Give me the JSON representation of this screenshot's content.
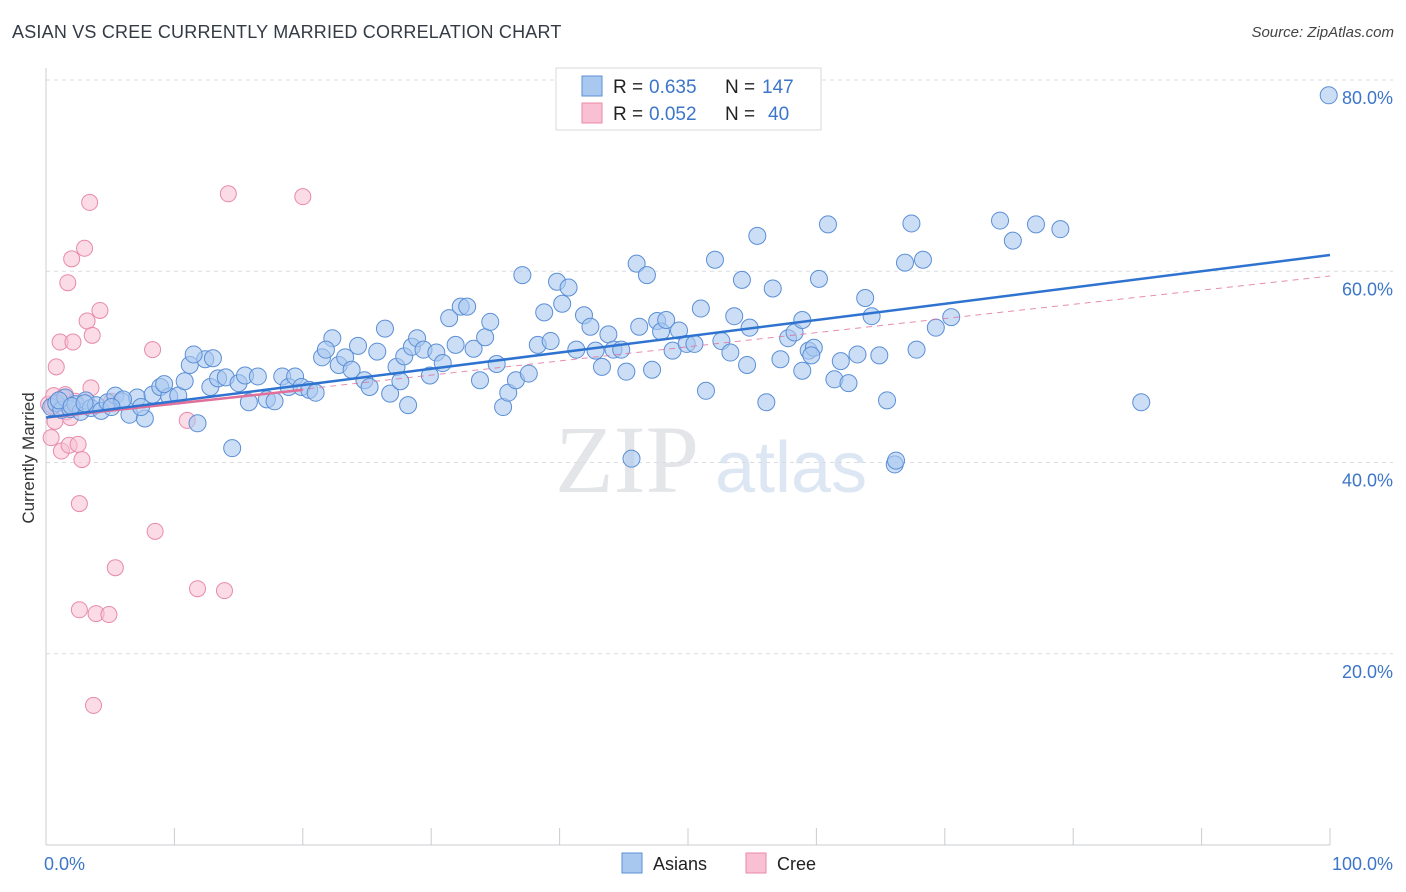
{
  "title": "ASIAN VS CREE CURRENTLY MARRIED CORRELATION CHART",
  "source": "Source: ZipAtlas.com",
  "watermark": {
    "zip": "ZIP",
    "atlas": "atlas"
  },
  "colors": {
    "asian_fill": "#a9c8f0",
    "asian_stroke": "#5b8fd6",
    "asian_line": "#2f73d0",
    "cree_fill": "#f8c0d2",
    "cree_stroke": "#e88aa8",
    "cree_line": "#e0709a",
    "tick_label": "#3c76c8",
    "grid": "#d9dde3"
  },
  "legend_top": [
    {
      "r_label": "R = ",
      "r_value": "0.635",
      "n_label": "N = ",
      "n_value": "147"
    },
    {
      "r_label": "R = ",
      "r_value": "0.052",
      "n_label": "N = ",
      "n_value": "40"
    }
  ],
  "chart_data": {
    "type": "scatter",
    "title": "ASIAN VS CREE CURRENTLY MARRIED CORRELATION CHART",
    "xlabel": "",
    "ylabel": "Currently Married",
    "xlim": [
      0,
      100
    ],
    "ylim": [
      0,
      80
    ],
    "x_tick_labels": [
      "0.0%",
      "100.0%"
    ],
    "y_ticks": [
      20,
      40,
      60,
      80
    ],
    "y_tick_labels": [
      "20.0%",
      "40.0%",
      "60.0%",
      "80.0%"
    ],
    "grid": "horizontal dashed",
    "legend_position": "bottom-center",
    "series": [
      {
        "name": "Asians",
        "r": 0.635,
        "n": 147,
        "trend": {
          "x": [
            0,
            100
          ],
          "y": [
            44.7,
            61.7
          ]
        },
        "points": [
          [
            0.4,
            45.8
          ],
          [
            0.8,
            46.2
          ],
          [
            1.2,
            45.5
          ],
          [
            1.5,
            46.8
          ],
          [
            1.9,
            45.6
          ],
          [
            2.3,
            46.1
          ],
          [
            2.7,
            45.3
          ],
          [
            3.1,
            46.5
          ],
          [
            3.5,
            45.7
          ],
          [
            3.9,
            46.0
          ],
          [
            4.3,
            45.4
          ],
          [
            4.8,
            46.3
          ],
          [
            5.4,
            47.0
          ],
          [
            5.9,
            46.4
          ],
          [
            6.5,
            45.0
          ],
          [
            7.1,
            46.8
          ],
          [
            7.7,
            44.6
          ],
          [
            8.3,
            47.1
          ],
          [
            8.9,
            47.9
          ],
          [
            9.6,
            46.9
          ],
          [
            10.3,
            47.0
          ],
          [
            10.8,
            48.5
          ],
          [
            11.2,
            50.2
          ],
          [
            11.8,
            44.1
          ],
          [
            12.4,
            50.8
          ],
          [
            12.8,
            47.9
          ],
          [
            13.4,
            48.8
          ],
          [
            14.0,
            48.9
          ],
          [
            14.5,
            41.5
          ],
          [
            15.0,
            48.3
          ],
          [
            15.5,
            49.1
          ],
          [
            15.8,
            46.3
          ],
          [
            16.5,
            49.0
          ],
          [
            17.2,
            46.6
          ],
          [
            17.8,
            46.4
          ],
          [
            18.4,
            49.0
          ],
          [
            18.9,
            47.9
          ],
          [
            19.4,
            49.0
          ],
          [
            19.9,
            47.9
          ],
          [
            20.5,
            47.6
          ],
          [
            21.0,
            47.3
          ],
          [
            21.5,
            51.0
          ],
          [
            22.3,
            53.0
          ],
          [
            22.8,
            50.2
          ],
          [
            23.3,
            51.0
          ],
          [
            23.8,
            49.7
          ],
          [
            24.3,
            52.2
          ],
          [
            24.8,
            48.6
          ],
          [
            25.2,
            47.9
          ],
          [
            25.8,
            51.6
          ],
          [
            26.4,
            54.0
          ],
          [
            26.8,
            47.2
          ],
          [
            27.3,
            50.0
          ],
          [
            27.9,
            51.1
          ],
          [
            28.5,
            52.1
          ],
          [
            28.9,
            53.0
          ],
          [
            29.4,
            51.8
          ],
          [
            29.9,
            49.1
          ],
          [
            30.4,
            51.5
          ],
          [
            30.9,
            50.4
          ],
          [
            31.4,
            55.1
          ],
          [
            31.9,
            52.3
          ],
          [
            32.3,
            56.3
          ],
          [
            32.8,
            56.3
          ],
          [
            33.3,
            51.9
          ],
          [
            33.8,
            48.6
          ],
          [
            34.2,
            53.1
          ],
          [
            34.6,
            54.7
          ],
          [
            35.1,
            50.3
          ],
          [
            35.6,
            45.8
          ],
          [
            36.0,
            47.3
          ],
          [
            36.6,
            48.6
          ],
          [
            37.1,
            59.6
          ],
          [
            37.6,
            49.3
          ],
          [
            38.3,
            52.3
          ],
          [
            38.8,
            55.7
          ],
          [
            39.3,
            52.7
          ],
          [
            39.8,
            58.9
          ],
          [
            40.2,
            56.6
          ],
          [
            40.7,
            58.3
          ],
          [
            41.3,
            51.8
          ],
          [
            41.9,
            55.4
          ],
          [
            42.4,
            54.2
          ],
          [
            42.8,
            51.7
          ],
          [
            43.3,
            50.0
          ],
          [
            43.8,
            53.4
          ],
          [
            44.2,
            51.8
          ],
          [
            44.8,
            51.8
          ],
          [
            45.2,
            49.5
          ],
          [
            45.6,
            40.4
          ],
          [
            46.0,
            60.8
          ],
          [
            46.2,
            54.2
          ],
          [
            46.8,
            59.6
          ],
          [
            47.2,
            49.7
          ],
          [
            47.6,
            54.8
          ],
          [
            47.9,
            53.7
          ],
          [
            48.3,
            54.9
          ],
          [
            48.8,
            51.7
          ],
          [
            49.3,
            53.8
          ],
          [
            49.9,
            52.4
          ],
          [
            50.5,
            52.4
          ],
          [
            51.0,
            56.1
          ],
          [
            51.4,
            47.5
          ],
          [
            52.1,
            61.2
          ],
          [
            52.6,
            52.7
          ],
          [
            53.3,
            51.5
          ],
          [
            53.6,
            55.3
          ],
          [
            54.2,
            59.1
          ],
          [
            54.8,
            54.1
          ],
          [
            55.4,
            63.7
          ],
          [
            56.1,
            46.3
          ],
          [
            56.6,
            58.2
          ],
          [
            57.2,
            50.8
          ],
          [
            57.8,
            53.0
          ],
          [
            58.3,
            53.6
          ],
          [
            58.9,
            49.6
          ],
          [
            59.4,
            51.7
          ],
          [
            59.8,
            52.0
          ],
          [
            60.2,
            59.2
          ],
          [
            60.9,
            64.9
          ],
          [
            61.4,
            48.7
          ],
          [
            61.9,
            50.6
          ],
          [
            62.5,
            48.3
          ],
          [
            63.2,
            51.3
          ],
          [
            63.8,
            57.2
          ],
          [
            64.3,
            55.3
          ],
          [
            64.9,
            51.2
          ],
          [
            65.5,
            46.5
          ],
          [
            66.1,
            39.8
          ],
          [
            66.9,
            60.9
          ],
          [
            67.4,
            65.0
          ],
          [
            67.8,
            51.8
          ],
          [
            68.3,
            61.2
          ],
          [
            69.3,
            54.1
          ],
          [
            70.5,
            55.2
          ],
          [
            74.3,
            65.3
          ],
          [
            75.3,
            63.2
          ],
          [
            77.1,
            64.9
          ],
          [
            79.0,
            64.4
          ],
          [
            85.3,
            46.3
          ],
          [
            99.9,
            78.4
          ],
          [
            1.0,
            46.5
          ],
          [
            2.0,
            45.9
          ],
          [
            3.0,
            46.2
          ],
          [
            6.0,
            46.6
          ],
          [
            7.4,
            45.8
          ],
          [
            9.2,
            48.2
          ],
          [
            13.0,
            50.9
          ],
          [
            27.6,
            48.5
          ],
          [
            54.6,
            50.2
          ],
          [
            5.1,
            45.8
          ],
          [
            11.5,
            51.3
          ],
          [
            58.9,
            54.9
          ],
          [
            66.2,
            40.2
          ],
          [
            59.6,
            51.2
          ],
          [
            28.2,
            46.0
          ],
          [
            21.8,
            51.8
          ]
        ]
      },
      {
        "name": "Cree",
        "r": 0.052,
        "n": 40,
        "trend_solid": {
          "x": [
            0,
            20
          ],
          "y": [
            44.7,
            47.6
          ]
        },
        "trend_dashed": {
          "x": [
            0,
            100
          ],
          "y": [
            44.7,
            59.5
          ]
        },
        "points": [
          [
            0.2,
            46.1
          ],
          [
            0.4,
            42.6
          ],
          [
            0.5,
            45.9
          ],
          [
            0.6,
            47.0
          ],
          [
            0.7,
            44.3
          ],
          [
            0.8,
            50.0
          ],
          [
            1.0,
            46.2
          ],
          [
            1.1,
            52.6
          ],
          [
            1.2,
            41.2
          ],
          [
            1.3,
            46.8
          ],
          [
            1.5,
            47.1
          ],
          [
            1.6,
            45.3
          ],
          [
            1.7,
            58.8
          ],
          [
            1.8,
            41.8
          ],
          [
            1.9,
            44.7
          ],
          [
            2.0,
            61.3
          ],
          [
            2.1,
            52.6
          ],
          [
            2.3,
            46.4
          ],
          [
            2.5,
            41.9
          ],
          [
            2.6,
            35.7
          ],
          [
            2.8,
            40.3
          ],
          [
            3.0,
            62.4
          ],
          [
            3.2,
            54.8
          ],
          [
            3.4,
            67.2
          ],
          [
            3.5,
            47.8
          ],
          [
            3.6,
            53.3
          ],
          [
            3.7,
            14.6
          ],
          [
            3.9,
            24.2
          ],
          [
            4.2,
            55.9
          ],
          [
            5.1,
            46.4
          ],
          [
            5.4,
            29.0
          ],
          [
            8.3,
            51.8
          ],
          [
            8.5,
            32.8
          ],
          [
            11.0,
            44.4
          ],
          [
            11.8,
            26.8
          ],
          [
            13.9,
            26.6
          ],
          [
            14.2,
            68.1
          ],
          [
            20.0,
            67.8
          ],
          [
            2.6,
            24.6
          ],
          [
            4.9,
            24.1
          ]
        ]
      }
    ]
  }
}
